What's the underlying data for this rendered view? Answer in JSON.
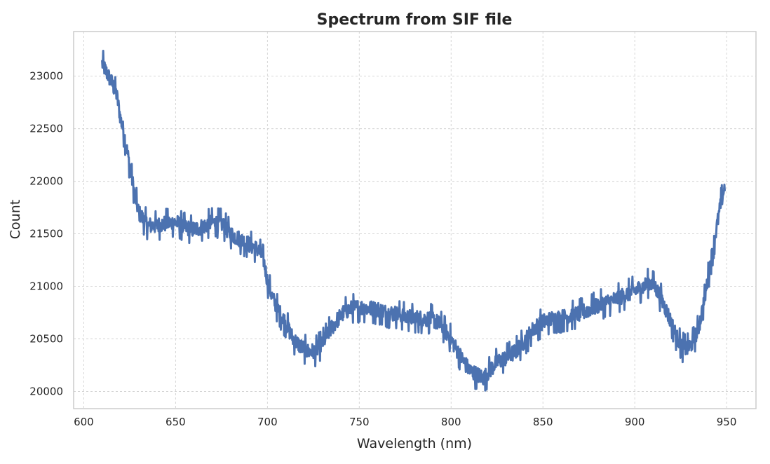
{
  "chart_data": {
    "type": "line",
    "title": "Spectrum from SIF file",
    "xlabel": "Wavelength (nm)",
    "ylabel": "Count",
    "xlim": [
      594.5,
      966
    ],
    "ylim": [
      19837,
      23425
    ],
    "x_ticks": [
      600,
      650,
      700,
      750,
      800,
      850,
      900,
      950
    ],
    "y_ticks": [
      20000,
      20500,
      21000,
      21500,
      22000,
      22500,
      23000
    ],
    "grid": true,
    "legend": "none",
    "noise_amplitude": 80,
    "series": [
      {
        "color": "#4c72b0",
        "x": [
          610,
          612,
          615,
          618,
          620,
          622,
          624,
          626,
          628,
          630,
          635,
          640,
          645,
          650,
          655,
          660,
          665,
          670,
          675,
          680,
          685,
          690,
          695,
          698,
          700,
          703,
          706,
          710,
          714,
          718,
          722,
          726,
          730,
          734,
          738,
          742,
          746,
          750,
          755,
          760,
          765,
          770,
          775,
          780,
          785,
          790,
          795,
          800,
          803,
          806,
          810,
          814,
          818,
          821,
          825,
          830,
          835,
          840,
          845,
          850,
          855,
          860,
          865,
          870,
          875,
          880,
          885,
          890,
          895,
          900,
          905,
          908,
          911,
          914,
          917,
          920,
          923,
          926,
          929,
          932,
          935,
          938,
          941,
          944,
          947,
          949
        ],
        "y": [
          23120,
          23050,
          22950,
          22820,
          22600,
          22450,
          22250,
          22050,
          21850,
          21700,
          21580,
          21580,
          21600,
          21610,
          21560,
          21540,
          21570,
          21610,
          21600,
          21500,
          21450,
          21400,
          21350,
          21250,
          21050,
          20880,
          20770,
          20650,
          20500,
          20430,
          20380,
          20380,
          20460,
          20580,
          20680,
          20760,
          20790,
          20800,
          20790,
          20780,
          20750,
          20740,
          20710,
          20700,
          20690,
          20690,
          20620,
          20500,
          20400,
          20310,
          20200,
          20160,
          20130,
          20200,
          20280,
          20320,
          20380,
          20480,
          20600,
          20660,
          20690,
          20700,
          20720,
          20740,
          20780,
          20820,
          20850,
          20880,
          20920,
          20960,
          21000,
          21040,
          21000,
          20900,
          20780,
          20650,
          20510,
          20420,
          20410,
          20480,
          20620,
          20880,
          21200,
          21500,
          21800,
          21950
        ]
      }
    ]
  }
}
